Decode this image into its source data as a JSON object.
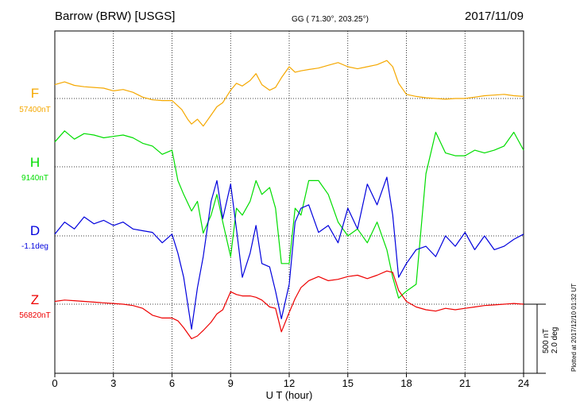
{
  "header": {
    "station": "Barrow (BRW)  [USGS]",
    "coords": "GG ( 71.30°, 203.25°)",
    "date": "2017/11/09"
  },
  "xaxis": {
    "label": "U T (hour)",
    "ticks": [
      "0",
      "3",
      "6",
      "9",
      "12",
      "15",
      "18",
      "21",
      "24"
    ]
  },
  "scale": {
    "nt": "500 nT",
    "deg": "2.0 deg"
  },
  "plotted": "Plotted at 2017/12/10 01:32 UT",
  "colors": {
    "F": "#f5a800",
    "H": "#00dd00",
    "D": "#0000dd",
    "Z": "#ee0000"
  },
  "chart_data": {
    "type": "line",
    "title": "Barrow (BRW)  [USGS]",
    "xlabel": "U T (hour)",
    "xlim": [
      0,
      24
    ],
    "x_ticks": [
      0,
      3,
      6,
      9,
      12,
      15,
      18,
      21,
      24
    ],
    "grid": true,
    "y_scale_note": "500 nT / 2.0 deg per division",
    "series": [
      {
        "name": "F",
        "baseline_label": "57400nT",
        "unit": "nT",
        "x": [
          0,
          0.5,
          1,
          1.5,
          2,
          2.5,
          3,
          3.5,
          4,
          4.5,
          5,
          5.5,
          6,
          6.5,
          6.8,
          7.0,
          7.3,
          7.6,
          8.0,
          8.3,
          8.6,
          9.0,
          9.3,
          9.6,
          10.0,
          10.3,
          10.6,
          11.0,
          11.3,
          11.6,
          12.0,
          12.3,
          12.6,
          13.0,
          13.5,
          14.0,
          14.5,
          15.0,
          15.5,
          16.0,
          16.5,
          17.0,
          17.3,
          17.6,
          18.0,
          18.5,
          19.0,
          19.5,
          20.0,
          20.5,
          21.0,
          21.5,
          22.0,
          22.5,
          23.0,
          23.5,
          24.0
        ],
        "y": [
          100,
          120,
          95,
          85,
          80,
          75,
          55,
          65,
          45,
          10,
          -10,
          -15,
          -15,
          -80,
          -150,
          -185,
          -150,
          -200,
          -120,
          -60,
          -30,
          60,
          110,
          90,
          130,
          180,
          100,
          60,
          80,
          150,
          230,
          190,
          200,
          210,
          220,
          240,
          260,
          230,
          215,
          230,
          245,
          275,
          230,
          110,
          30,
          15,
          5,
          0,
          -5,
          0,
          0,
          10,
          20,
          25,
          30,
          20,
          15
        ]
      },
      {
        "name": "H",
        "baseline_label": "9140nT",
        "unit": "nT",
        "x": [
          0,
          0.5,
          1,
          1.5,
          2,
          2.5,
          3,
          3.5,
          4,
          4.5,
          5,
          5.5,
          6,
          6.3,
          6.6,
          7.0,
          7.3,
          7.6,
          8.0,
          8.3,
          8.6,
          9.0,
          9.3,
          9.6,
          10.0,
          10.3,
          10.6,
          11.0,
          11.3,
          11.6,
          12.0,
          12.3,
          12.6,
          13.0,
          13.5,
          14.0,
          14.5,
          15.0,
          15.5,
          16.0,
          16.5,
          17.0,
          17.3,
          17.6,
          18.0,
          18.5,
          19.0,
          19.5,
          20.0,
          20.5,
          21.0,
          21.5,
          22.0,
          22.5,
          23.0,
          23.5,
          24.0
        ],
        "y": [
          180,
          260,
          200,
          240,
          230,
          210,
          220,
          230,
          210,
          170,
          150,
          90,
          120,
          -100,
          -200,
          -320,
          -250,
          -480,
          -350,
          -200,
          -400,
          -650,
          -300,
          -350,
          -250,
          -100,
          -200,
          -150,
          -300,
          -700,
          -700,
          -300,
          -350,
          -100,
          -100,
          -200,
          -400,
          -500,
          -450,
          -550,
          -400,
          -600,
          -800,
          -950,
          -900,
          -850,
          -50,
          250,
          100,
          80,
          80,
          120,
          100,
          120,
          150,
          250,
          120
        ]
      },
      {
        "name": "D",
        "baseline_label": "-1.1deg",
        "unit": "deg",
        "x": [
          0,
          0.5,
          1,
          1.5,
          2,
          2.5,
          3,
          3.5,
          4,
          4.5,
          5,
          5.5,
          6,
          6.3,
          6.6,
          7.0,
          7.3,
          7.6,
          8.0,
          8.3,
          8.6,
          9.0,
          9.3,
          9.6,
          10.0,
          10.3,
          10.6,
          11.0,
          11.3,
          11.6,
          12.0,
          12.3,
          12.6,
          13.0,
          13.5,
          14.0,
          14.5,
          15.0,
          15.5,
          16.0,
          16.5,
          17.0,
          17.3,
          17.6,
          18.0,
          18.5,
          19.0,
          19.5,
          20.0,
          20.5,
          21.0,
          21.5,
          22.0,
          22.5,
          23.0,
          23.5,
          24.0
        ],
        "y": [
          0.05,
          0.4,
          0.2,
          0.55,
          0.35,
          0.45,
          0.3,
          0.4,
          0.2,
          0.15,
          0.1,
          -0.2,
          0.05,
          -0.5,
          -1.2,
          -2.7,
          -1.5,
          -0.6,
          1.0,
          1.6,
          0.5,
          1.5,
          0.2,
          -1.2,
          -0.5,
          0.3,
          -0.8,
          -0.9,
          -1.6,
          -2.4,
          -1.4,
          0.4,
          0.8,
          0.9,
          0.1,
          0.3,
          -0.2,
          0.8,
          0.2,
          1.5,
          0.9,
          1.7,
          0.6,
          -1.2,
          -0.8,
          -0.4,
          -0.3,
          -0.6,
          0.0,
          -0.3,
          0.1,
          -0.4,
          0.0,
          -0.4,
          -0.3,
          -0.1,
          0.05
        ]
      },
      {
        "name": "Z",
        "baseline_label": "56820nT",
        "unit": "nT",
        "x": [
          0,
          0.5,
          1,
          1.5,
          2,
          2.5,
          3,
          3.5,
          4,
          4.5,
          5,
          5.5,
          6,
          6.3,
          6.6,
          7.0,
          7.3,
          7.6,
          8.0,
          8.3,
          8.6,
          9.0,
          9.3,
          9.6,
          10.0,
          10.3,
          10.6,
          11.0,
          11.3,
          11.6,
          12.0,
          12.3,
          12.6,
          13.0,
          13.5,
          14.0,
          14.5,
          15.0,
          15.5,
          16.0,
          16.5,
          17.0,
          17.3,
          17.6,
          18.0,
          18.5,
          19.0,
          19.5,
          20.0,
          20.5,
          21.0,
          21.5,
          22.0,
          22.5,
          23.0,
          23.5,
          24.0
        ],
        "y": [
          20,
          30,
          25,
          20,
          15,
          10,
          5,
          0,
          -10,
          -30,
          -80,
          -100,
          -100,
          -120,
          -170,
          -250,
          -230,
          -190,
          -130,
          -70,
          -40,
          90,
          70,
          60,
          60,
          50,
          30,
          -20,
          -30,
          -200,
          -60,
          40,
          120,
          170,
          200,
          170,
          180,
          200,
          210,
          185,
          210,
          240,
          230,
          100,
          20,
          -20,
          -40,
          -50,
          -30,
          -40,
          -30,
          -20,
          -10,
          -5,
          0,
          5,
          0
        ]
      }
    ]
  }
}
